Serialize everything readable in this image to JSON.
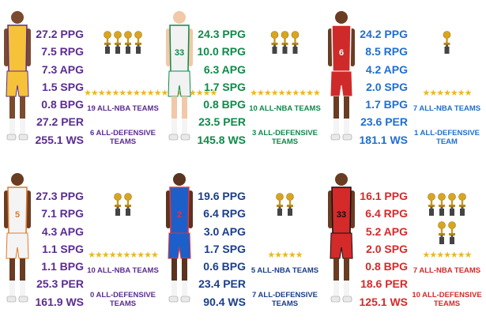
{
  "players": [
    {
      "id": "lakers-23",
      "color": "#5b2c91",
      "jersey": {
        "primary": "#f6c23a",
        "trim": "#5b2c91",
        "number": "",
        "shorts": "#f6c23a"
      },
      "skin": "#7a4b2e",
      "stats": [
        "27.2 PPG",
        "7.5 RPG",
        "7.3 APG",
        "1.5 SPG",
        "0.8 BPG",
        "27.2 PER",
        "255.1 WS"
      ],
      "trophies": 4,
      "stars": "★★★★★★★★★★★★★★★★★★★",
      "all_nba": "19 ALL-NBA TEAMS",
      "all_def": "6 ALL-DEFENSIVE TEAMS"
    },
    {
      "id": "celtics-33",
      "color": "#0f8a4a",
      "jersey": {
        "primary": "#f2f2f2",
        "trim": "#0f8a4a",
        "number": "33",
        "shorts": "#f2f2f2"
      },
      "skin": "#f1c8a8",
      "stats": [
        "24.3 PPG",
        "10.0 RPG",
        "6.3 APG",
        "1.7 SPG",
        "0.8 BPG",
        "23.5 PER",
        "145.8 WS"
      ],
      "trophies": 3,
      "stars": "★★★★★★★★★★",
      "all_nba": "10 ALL-NBA TEAMS",
      "all_def": "3 ALL-DEFENSIVE TEAMS"
    },
    {
      "id": "sixers-6",
      "color": "#1f6fd0",
      "jersey": {
        "primary": "#cf2a2a",
        "trim": "#ffffff",
        "number": "6",
        "shorts": "#cf2a2a"
      },
      "skin": "#6a3c22",
      "stats": [
        "24.2 PPG",
        "8.5 RPG",
        "4.2 APG",
        "2.0 SPG",
        "1.7 BPG",
        "23.6 PER",
        "181.1 WS"
      ],
      "trophies": 1,
      "stars": "★★★★★★★",
      "all_nba": "7 ALL-NBA TEAMS",
      "all_def": "1 ALL-DEFENSIVE TEAM"
    },
    {
      "id": "suns-5",
      "color": "#5b2c91",
      "jersey": {
        "primary": "#f4f4f4",
        "trim": "#e07a2a",
        "number": "5",
        "shorts": "#f4f4f4"
      },
      "skin": "#6a3c22",
      "stats": [
        "27.3 PPG",
        "7.1 RPG",
        "4.3 APG",
        "1.1 SPG",
        "1.1 BPG",
        "25.3 PER",
        "161.9 WS"
      ],
      "trophies": 2,
      "stars": "★★★★★★★★★★",
      "all_nba": "10 ALL-NBA TEAMS",
      "all_def": "0 ALL-DEFENSIVE TEAMS"
    },
    {
      "id": "clippers-2",
      "color": "#1a3e8a",
      "jersey": {
        "primary": "#1d5fc9",
        "trim": "#e8323c",
        "number": "2",
        "shorts": "#1d5fc9"
      },
      "skin": "#5a341f",
      "stats": [
        "19.6 PPG",
        "6.4 RPG",
        "3.0 APG",
        "1.7 SPG",
        "0.6 BPG",
        "23.4 PER",
        "90.4 WS"
      ],
      "trophies": 2,
      "stars": "★★★★★",
      "all_nba": "5 ALL-NBA TEAMS",
      "all_def": "7 ALL-DEFENSIVE TEAMS"
    },
    {
      "id": "bulls-33",
      "color": "#d42a2a",
      "jersey": {
        "primary": "#d42a2a",
        "trim": "#111111",
        "number": "33",
        "shorts": "#d42a2a"
      },
      "skin": "#6a3c22",
      "stats": [
        "16.1 PPG",
        "6.4 RPG",
        "5.2 APG",
        "2.0 SPG",
        "0.8 BPG",
        "18.6 PER",
        "125.1 WS"
      ],
      "trophies": 6,
      "stars": "★★★★★★★",
      "all_nba": "7 ALL-NBA TEAMS",
      "all_def": "10 ALL-DEFENSIVE TEAMS"
    }
  ]
}
